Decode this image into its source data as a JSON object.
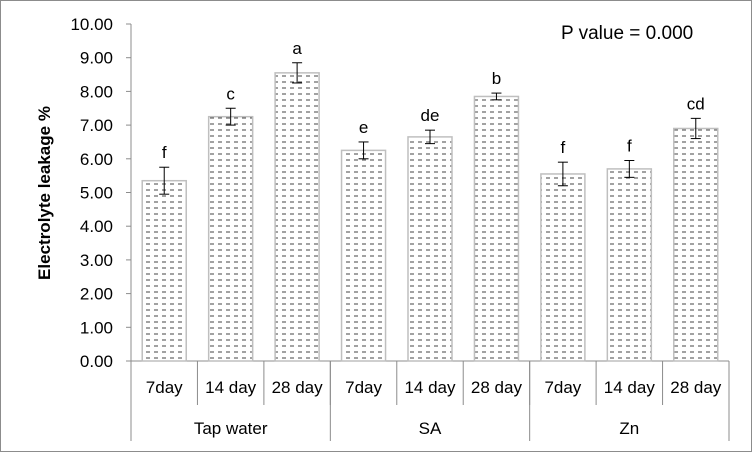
{
  "chart_data": {
    "type": "bar",
    "title": "",
    "xlabel": "",
    "ylabel": "Electrolyte leakage %",
    "ylim": [
      0,
      10
    ],
    "ytick_step": 1,
    "ytick_labels": [
      "0.00",
      "1.00",
      "2.00",
      "3.00",
      "4.00",
      "5.00",
      "6.00",
      "7.00",
      "8.00",
      "9.00",
      "10.00"
    ],
    "annotation": "P value = 0.000",
    "grid": false,
    "legend": "none",
    "groups": [
      {
        "name": "Tap water",
        "categories": [
          "7day",
          "14 day",
          "28 day"
        ],
        "values": [
          5.35,
          7.25,
          8.55
        ],
        "errors": [
          0.4,
          0.25,
          0.3
        ],
        "letters": [
          "f",
          "c",
          "a"
        ]
      },
      {
        "name": "SA",
        "categories": [
          "7day",
          "14 day",
          "28 day"
        ],
        "values": [
          6.25,
          6.65,
          7.85
        ],
        "errors": [
          0.25,
          0.2,
          0.1
        ],
        "letters": [
          "e",
          "de",
          "b"
        ]
      },
      {
        "name": "Zn",
        "categories": [
          "7day",
          "14 day",
          "28 day"
        ],
        "values": [
          5.55,
          5.7,
          6.9
        ],
        "errors": [
          0.35,
          0.25,
          0.3
        ],
        "letters": [
          "f",
          "f",
          "cd"
        ]
      }
    ],
    "colors": {
      "bar_fill": "#ffffff",
      "bar_stroke": "#bfbfbf",
      "bar_pattern": "#444444",
      "axis": "#8c8c8c"
    }
  }
}
